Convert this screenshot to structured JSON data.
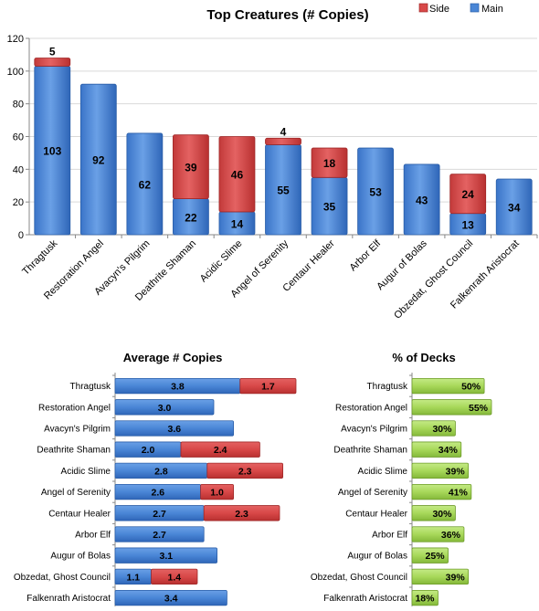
{
  "colors": {
    "main": "#4a86d6",
    "main_dark": "#2a5ea8",
    "side": "#d84848",
    "side_dark": "#a02828",
    "pct": "#a8d85a",
    "pct_dark": "#6e9c2a",
    "grid": "#d9d9d9"
  },
  "chart_data": [
    {
      "type": "bar",
      "title": "Top Creatures (# Copies)",
      "stacked": true,
      "categories": [
        "Thragtusk",
        "Restoration Angel",
        "Avacyn's Pilgrim",
        "Deathrite Shaman",
        "Acidic Slime",
        "Angel of Serenity",
        "Centaur Healer",
        "Arbor Elf",
        "Augur of Bolas",
        "Obzedat, Ghost Council",
        "Falkenrath Aristocrat"
      ],
      "series": [
        {
          "name": "Main",
          "values": [
            103,
            92,
            62,
            22,
            14,
            55,
            35,
            53,
            43,
            13,
            34
          ]
        },
        {
          "name": "Side",
          "values": [
            5,
            0,
            0,
            39,
            46,
            4,
            18,
            0,
            0,
            24,
            0
          ]
        }
      ],
      "ylim": [
        0,
        120
      ],
      "yticks": [
        "0",
        "20",
        "40",
        "60",
        "80",
        "100",
        "120"
      ],
      "grid": true,
      "legend_placement": "top-right"
    },
    {
      "type": "bar",
      "orientation": "horizontal",
      "title": "Average # Copies",
      "stacked": true,
      "categories": [
        "Thragtusk",
        "Restoration Angel",
        "Avacyn's Pilgrim",
        "Deathrite Shaman",
        "Acidic Slime",
        "Angel of Serenity",
        "Centaur Healer",
        "Arbor Elf",
        "Augur of Bolas",
        "Obzedat, Ghost Council",
        "Falkenrath Aristocrat"
      ],
      "series": [
        {
          "name": "Main",
          "values": [
            3.8,
            3.0,
            3.6,
            2.0,
            2.8,
            2.6,
            2.7,
            2.7,
            3.1,
            1.1,
            3.4
          ],
          "labels": [
            "3.8",
            "3.0",
            "3.6",
            "2.0",
            "2.8",
            "2.6",
            "2.7",
            "2.7",
            "3.1",
            "1.1",
            "3.4"
          ]
        },
        {
          "name": "Side",
          "values": [
            1.7,
            0,
            0,
            2.4,
            2.3,
            1.0,
            2.3,
            0,
            0,
            1.4,
            0
          ],
          "labels": [
            "1.7",
            "",
            "",
            "2.4",
            "2.3",
            "1.0",
            "2.3",
            "",
            "",
            "1.4",
            ""
          ]
        }
      ],
      "xlim": [
        0,
        5.5
      ]
    },
    {
      "type": "bar",
      "orientation": "horizontal",
      "title": "% of Decks",
      "categories": [
        "Thragtusk",
        "Restoration Angel",
        "Avacyn's Pilgrim",
        "Deathrite Shaman",
        "Acidic Slime",
        "Angel of Serenity",
        "Centaur Healer",
        "Arbor Elf",
        "Augur of Bolas",
        "Obzedat, Ghost Council",
        "Falkenrath Aristocrat"
      ],
      "values": [
        50,
        55,
        30,
        34,
        39,
        41,
        30,
        36,
        25,
        39,
        18
      ],
      "labels": [
        "50%",
        "55%",
        "30%",
        "34%",
        "39%",
        "41%",
        "30%",
        "36%",
        "25%",
        "39%",
        "18%"
      ],
      "xlim": [
        0,
        58
      ]
    }
  ]
}
